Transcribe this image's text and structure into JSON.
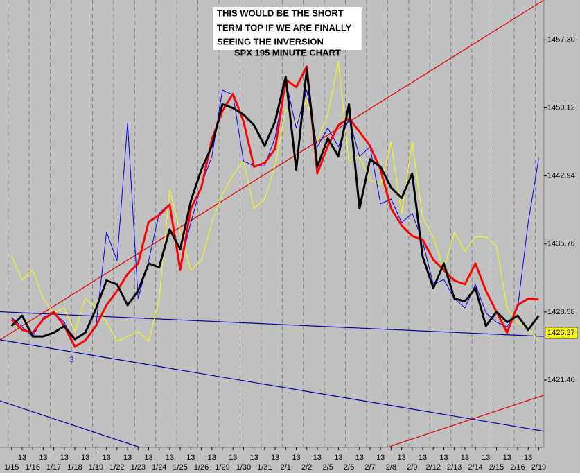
{
  "chart_data": {
    "type": "line",
    "title_lines": [
      "THIS WOULD BE THE SHORT",
      "TERM TOP IF WE ARE FINALLY",
      "SEEING THE INVERSION",
      "SPX 195 MINUTE CHART"
    ],
    "categories": [
      "1/15",
      "13",
      "1/16",
      "13",
      "1/17",
      "13",
      "1/18",
      "13",
      "1/19",
      "13",
      "1/22",
      "13",
      "1/23",
      "13",
      "1/24",
      "13",
      "1/25",
      "13",
      "1/26",
      "13",
      "1/29",
      "13",
      "1/30",
      "13",
      "1/31",
      "13",
      "2/1",
      "13",
      "2/2",
      "13",
      "2/5",
      "13",
      "2/6",
      "13",
      "2/7",
      "13",
      "2/8",
      "13",
      "2/9",
      "13",
      "2/12",
      "13",
      "2/13",
      "13",
      "2/14",
      "13",
      "2/15",
      "13",
      "2/16",
      "13",
      "2/19"
    ],
    "xlim": [
      -1.1,
      50.5
    ],
    "ylim": [
      1414.3,
      1461.5
    ],
    "yticks": [
      {
        "value": 1457.3,
        "label": "1457.30"
      },
      1450.12,
      1442.94,
      1435.76,
      1428.58,
      {
        "value": 1421.4,
        "label": "1421.40"
      }
    ],
    "grid": true,
    "series": [
      {
        "color": "#ffff00",
        "line_width": 1,
        "values": [
          1434.5,
          1432.0,
          1433.0,
          1430.0,
          1428.5,
          1429.0,
          1426.5,
          1430.0,
          1429.0,
          1427.5,
          1425.5,
          1426.0,
          1426.5,
          1425.5,
          1430.0,
          1441.5,
          1437.0,
          1433.0,
          1434.0,
          1438.0,
          1441.0,
          1443.0,
          1444.5,
          1439.5,
          1440.5,
          1444.0,
          1450.0,
          1448.5,
          1451.0,
          1446.5,
          1449.5,
          1455.0,
          1444.5,
          1445.0,
          1442.5,
          1442.0,
          1446.5,
          1439.0,
          1446.5,
          1438.5,
          1436.5,
          1433.0,
          1437.0,
          1435.0,
          1436.5,
          1436.5,
          1435.5,
          1429.0,
          1427.5,
          1426.8,
          1425.5
        ]
      },
      {
        "color": "#0000ff",
        "line_width": 1,
        "values": [
          1428.0,
          1427.0,
          1426.0,
          1428.0,
          1428.5,
          1427.5,
          1425.0,
          1425.5,
          1427.0,
          1437.0,
          1434.0,
          1448.5,
          1430.0,
          1434.0,
          1439.0,
          1440.0,
          1433.5,
          1438.0,
          1442.0,
          1445.0,
          1452.0,
          1451.5,
          1444.5,
          1444.0,
          1444.0,
          1447.0,
          1453.0,
          1448.0,
          1452.0,
          1446.0,
          1448.0,
          1446.0,
          1449.0,
          1445.0,
          1446.0,
          1440.0,
          1440.5,
          1438.0,
          1439.0,
          1436.0,
          1431.5,
          1432.0,
          1430.0,
          1429.0,
          1431.5,
          1428.5,
          1427.5,
          1427.0,
          1429.0,
          1438.0,
          1444.8
        ]
      },
      {
        "color": "#ff0000",
        "line_width": 3,
        "values": [
          1427.8,
          1426.7,
          1426.4,
          1427.8,
          1428.6,
          1427.1,
          1424.9,
          1425.6,
          1427.1,
          1429.3,
          1430.8,
          1432.6,
          1433.7,
          1438.1,
          1438.8,
          1439.9,
          1433.0,
          1439.5,
          1441.7,
          1446.8,
          1449.8,
          1451.6,
          1448.7,
          1443.9,
          1444.3,
          1445.8,
          1453.1,
          1452.3,
          1454.5,
          1443.2,
          1446.1,
          1448.3,
          1449.0,
          1447.6,
          1446.1,
          1443.6,
          1439.5,
          1437.7,
          1436.6,
          1436.2,
          1434.1,
          1433.0,
          1431.9,
          1431.5,
          1433.7,
          1430.8,
          1428.6,
          1426.4,
          1429.3,
          1430.0,
          1429.9
        ]
      },
      {
        "color": "#000000",
        "line_width": 3,
        "values": [
          1427.1,
          1428.2,
          1426.0,
          1426.0,
          1426.4,
          1427.1,
          1425.7,
          1426.4,
          1428.9,
          1431.9,
          1431.5,
          1429.3,
          1430.8,
          1433.7,
          1433.3,
          1437.3,
          1435.2,
          1440.3,
          1443.6,
          1446.1,
          1450.5,
          1450.1,
          1449.4,
          1448.3,
          1446.1,
          1448.7,
          1453.4,
          1443.6,
          1454.2,
          1443.9,
          1446.9,
          1445.0,
          1450.5,
          1439.5,
          1444.7,
          1443.9,
          1441.7,
          1440.6,
          1443.2,
          1434.4,
          1431.1,
          1433.7,
          1430.0,
          1429.7,
          1431.1,
          1427.1,
          1428.6,
          1427.5,
          1428.2,
          1426.7,
          1428.2
        ]
      }
    ],
    "trendlines": [
      {
        "color": "#e00000",
        "x": [
          -1.1,
          50.5
        ],
        "values": [
          1425.65,
          1461.5
        ]
      },
      {
        "color": "#e00000",
        "x": [
          35.07,
          50.5
        ],
        "values": [
          1414.1,
          1419.8
        ]
      },
      {
        "color": "#0000a0",
        "x": [
          -1.1,
          50.5
        ],
        "values": [
          1428.6,
          1426.0
        ]
      },
      {
        "color": "#0000a0",
        "x": [
          -1.1,
          50.5
        ],
        "values": [
          1425.65,
          1416.0
        ]
      },
      {
        "color": "#0000a0",
        "x": [
          -1.1,
          12.7
        ],
        "values": [
          1419.2,
          1414.1
        ]
      }
    ],
    "annotations": [
      {
        "text": "3",
        "x": 5.7,
        "y": 1423.5,
        "color": "#0000cc"
      }
    ],
    "last_price": 1426.37
  }
}
